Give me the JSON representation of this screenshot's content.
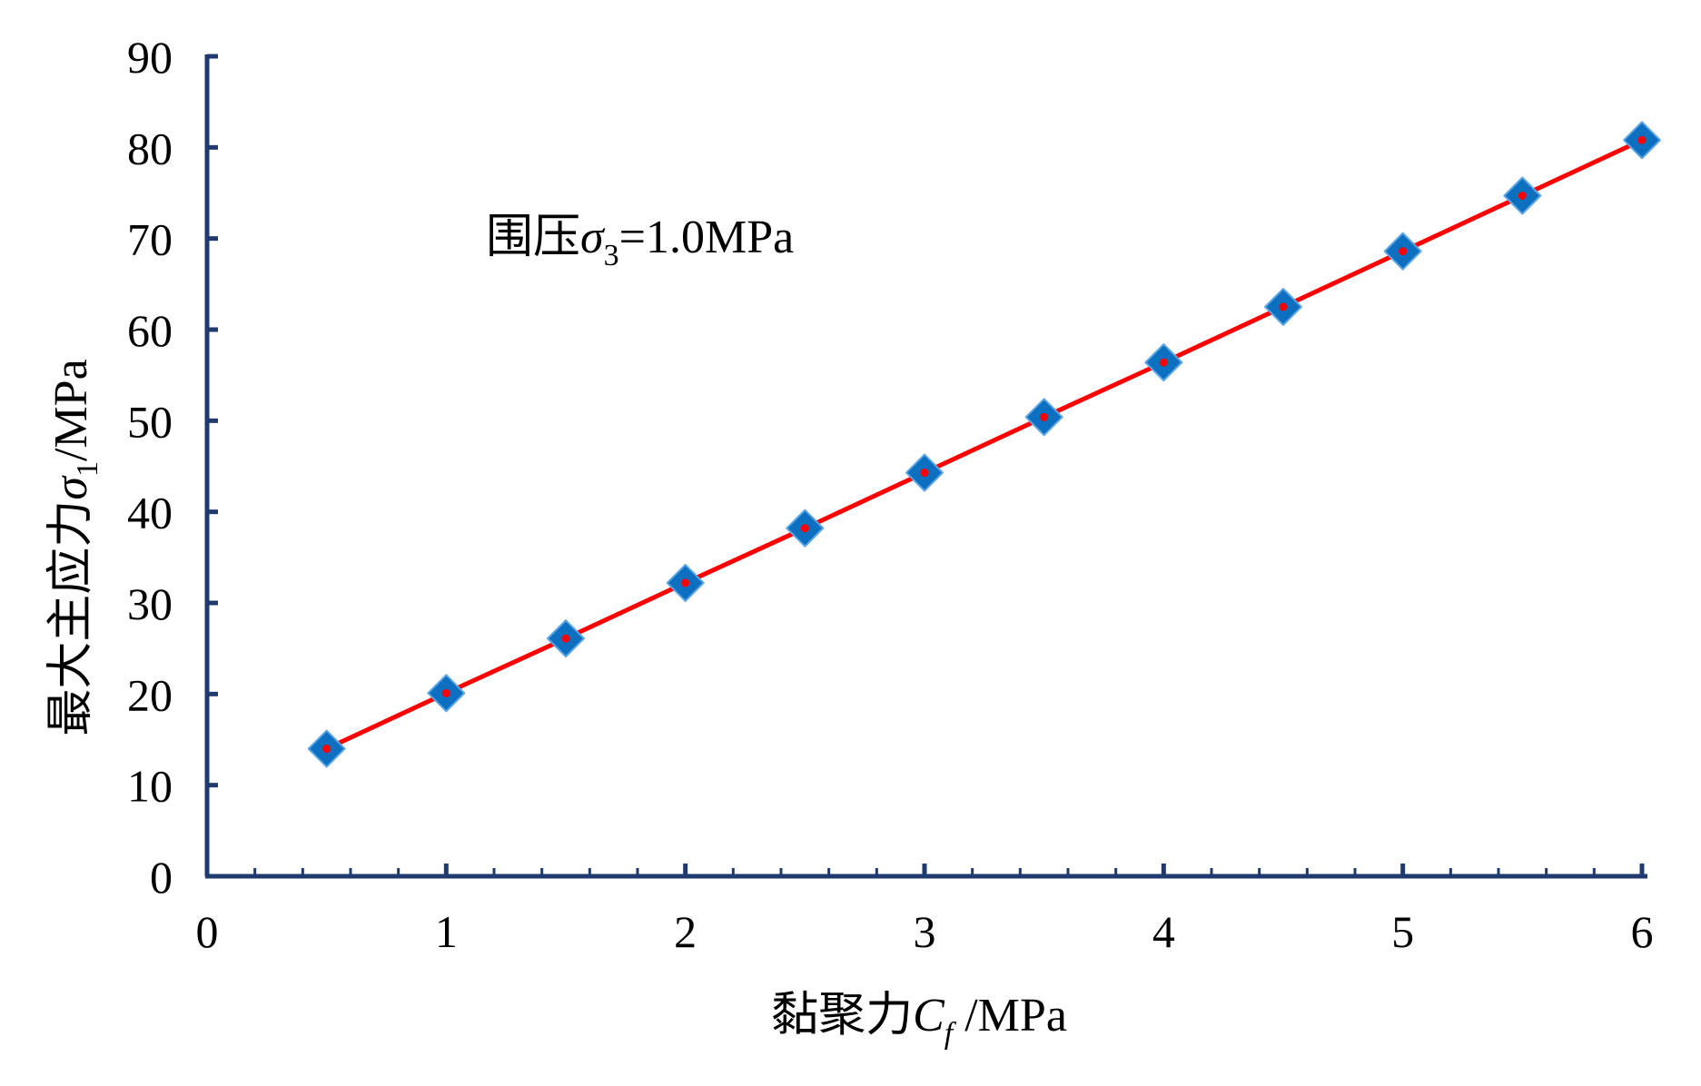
{
  "chart_data": {
    "type": "scatter",
    "x": [
      0.5,
      1.0,
      1.5,
      2.0,
      2.5,
      3.0,
      3.5,
      4.0,
      4.5,
      5.0,
      5.5,
      6.0
    ],
    "series": [
      {
        "values": [
          14.0,
          20.1,
          26.1,
          32.2,
          38.2,
          44.3,
          50.4,
          56.4,
          62.5,
          68.6,
          74.7,
          80.8
        ],
        "marker": "diamond",
        "marker_color": "#0d6fbf",
        "center_color": "#ff0000",
        "fit_line": true,
        "line_color": "#ff0000"
      }
    ],
    "xlim": [
      0,
      6
    ],
    "ylim": [
      0,
      90
    ],
    "x_ticks": [
      "0",
      "1",
      "2",
      "3",
      "4",
      "5",
      "6"
    ],
    "y_ticks": [
      "0",
      "10",
      "20",
      "30",
      "40",
      "50",
      "60",
      "70",
      "80",
      "90"
    ],
    "xlabel": {
      "prefix": "黏聚力",
      "symbol": "C",
      "subscript": "f",
      "suffix": " /MPa"
    },
    "ylabel": {
      "prefix": "最大主应力",
      "symbol": "σ",
      "subscript": "1",
      "suffix": "/MPa"
    },
    "annotation": {
      "prefix": "围压",
      "symbol": "σ",
      "subscript": "3",
      "suffix": "=1.0MPa"
    },
    "axis_color": "#1f3a6e",
    "grid": false
  }
}
